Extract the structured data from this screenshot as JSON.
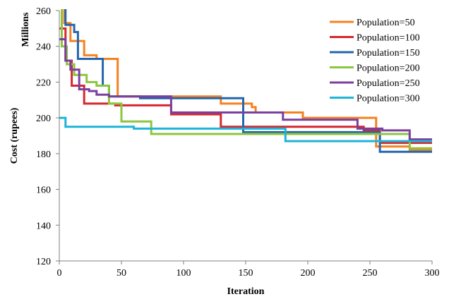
{
  "chart_data": {
    "type": "line",
    "xlabel": "Iteration",
    "ylabel": "Cost (rupees)",
    "y_unit_label": "Millions",
    "xlim": [
      0,
      300
    ],
    "ylim": [
      120,
      260
    ],
    "x_ticks": [
      "0",
      "50",
      "100",
      "150",
      "200",
      "250",
      "300"
    ],
    "y_ticks": [
      "120",
      "140",
      "160",
      "180",
      "200",
      "220",
      "240",
      "260"
    ],
    "grid": false,
    "legend_position": "top-right",
    "series": [
      {
        "name": "Population=50",
        "color": "#F58220",
        "step": true,
        "points": [
          [
            0,
            262
          ],
          [
            4,
            253
          ],
          [
            9,
            243
          ],
          [
            20,
            235
          ],
          [
            30,
            233
          ],
          [
            47,
            212
          ],
          [
            130,
            208
          ],
          [
            155,
            206
          ],
          [
            158,
            203
          ],
          [
            196,
            200
          ],
          [
            255,
            184
          ],
          [
            282,
            182
          ],
          [
            300,
            182
          ]
        ]
      },
      {
        "name": "Population=100",
        "color": "#D7272E",
        "step": true,
        "points": [
          [
            0,
            250
          ],
          [
            5,
            232
          ],
          [
            10,
            218
          ],
          [
            20,
            208
          ],
          [
            45,
            207
          ],
          [
            90,
            202
          ],
          [
            130,
            195
          ],
          [
            245,
            193
          ],
          [
            258,
            186
          ],
          [
            300,
            186
          ]
        ]
      },
      {
        "name": "Population=150",
        "color": "#2466AE",
        "step": true,
        "points": [
          [
            0,
            262
          ],
          [
            5,
            252
          ],
          [
            12,
            248
          ],
          [
            15,
            233
          ],
          [
            35,
            218
          ],
          [
            40,
            212
          ],
          [
            65,
            211
          ],
          [
            145,
            211
          ],
          [
            148,
            192
          ],
          [
            180,
            192
          ],
          [
            258,
            181
          ],
          [
            300,
            181
          ]
        ]
      },
      {
        "name": "Population=200",
        "color": "#8CC63F",
        "step": true,
        "points": [
          [
            0,
            262
          ],
          [
            2,
            240
          ],
          [
            6,
            230
          ],
          [
            12,
            224
          ],
          [
            22,
            220
          ],
          [
            30,
            218
          ],
          [
            40,
            208
          ],
          [
            50,
            198
          ],
          [
            74,
            191
          ],
          [
            250,
            191
          ],
          [
            282,
            183
          ],
          [
            300,
            183
          ]
        ]
      },
      {
        "name": "Population=250",
        "color": "#7B3F9E",
        "step": true,
        "points": [
          [
            0,
            244
          ],
          [
            5,
            232
          ],
          [
            9,
            227
          ],
          [
            16,
            216
          ],
          [
            24,
            215
          ],
          [
            30,
            213
          ],
          [
            40,
            212
          ],
          [
            90,
            203
          ],
          [
            180,
            199
          ],
          [
            240,
            194
          ],
          [
            260,
            193
          ],
          [
            282,
            188
          ],
          [
            300,
            188
          ]
        ]
      },
      {
        "name": "Population=300",
        "color": "#1EB4D8",
        "step": true,
        "points": [
          [
            0,
            200
          ],
          [
            5,
            195
          ],
          [
            60,
            194
          ],
          [
            182,
            187
          ],
          [
            300,
            187
          ]
        ]
      }
    ]
  }
}
